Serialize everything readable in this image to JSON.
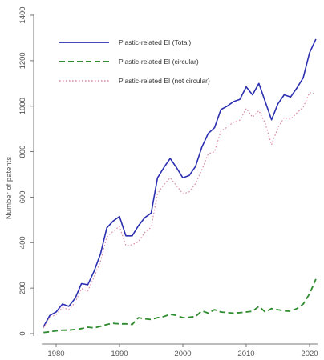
{
  "chart_data": {
    "type": "line",
    "title": "",
    "xlabel": "",
    "ylabel": "Number of patents",
    "xlim": [
      1978,
      2021
    ],
    "ylim": [
      0,
      1400
    ],
    "x_ticks": [
      1980,
      1990,
      2000,
      2010,
      2020
    ],
    "y_ticks": [
      0,
      200,
      400,
      600,
      800,
      1000,
      1200,
      1400
    ],
    "grid": false,
    "legend_position": "top-left",
    "x": [
      1978,
      1979,
      1980,
      1981,
      1982,
      1983,
      1984,
      1985,
      1986,
      1987,
      1988,
      1989,
      1990,
      1991,
      1992,
      1993,
      1994,
      1995,
      1996,
      1997,
      1998,
      1999,
      2000,
      2001,
      2002,
      2003,
      2004,
      2005,
      2006,
      2007,
      2008,
      2009,
      2010,
      2011,
      2012,
      2013,
      2014,
      2015,
      2016,
      2017,
      2018,
      2019,
      2020,
      2021
    ],
    "series": [
      {
        "name": "Plastic-related EI (Total)",
        "color": "#2b2fb0",
        "style": "solid",
        "values": [
          30,
          80,
          95,
          130,
          120,
          155,
          220,
          215,
          275,
          350,
          465,
          495,
          515,
          430,
          430,
          475,
          510,
          530,
          685,
          730,
          770,
          730,
          685,
          695,
          735,
          820,
          880,
          905,
          985,
          1000,
          1020,
          1030,
          1085,
          1050,
          1100,
          1020,
          940,
          1010,
          1050,
          1040,
          1080,
          1125,
          1235,
          1295
        ]
      },
      {
        "name": "Plastic-related EI (circular)",
        "color": "#2e8b2e",
        "style": "dashed",
        "values": [
          5,
          8,
          12,
          15,
          15,
          18,
          22,
          28,
          25,
          32,
          40,
          45,
          43,
          43,
          40,
          70,
          65,
          62,
          70,
          75,
          85,
          80,
          70,
          72,
          75,
          100,
          90,
          105,
          95,
          92,
          90,
          92,
          95,
          98,
          120,
          95,
          110,
          105,
          100,
          98,
          110,
          130,
          175,
          240
        ]
      },
      {
        "name": "Plastic-related EI (not circular)",
        "color": "#d98aa6",
        "style": "dotted",
        "values": [
          25,
          72,
          83,
          115,
          105,
          137,
          198,
          187,
          250,
          318,
          425,
          450,
          472,
          387,
          390,
          405,
          445,
          468,
          615,
          655,
          685,
          650,
          615,
          623,
          660,
          720,
          790,
          800,
          890,
          908,
          930,
          938,
          990,
          952,
          980,
          925,
          830,
          905,
          950,
          942,
          970,
          995,
          1060,
          1055
        ]
      }
    ]
  }
}
